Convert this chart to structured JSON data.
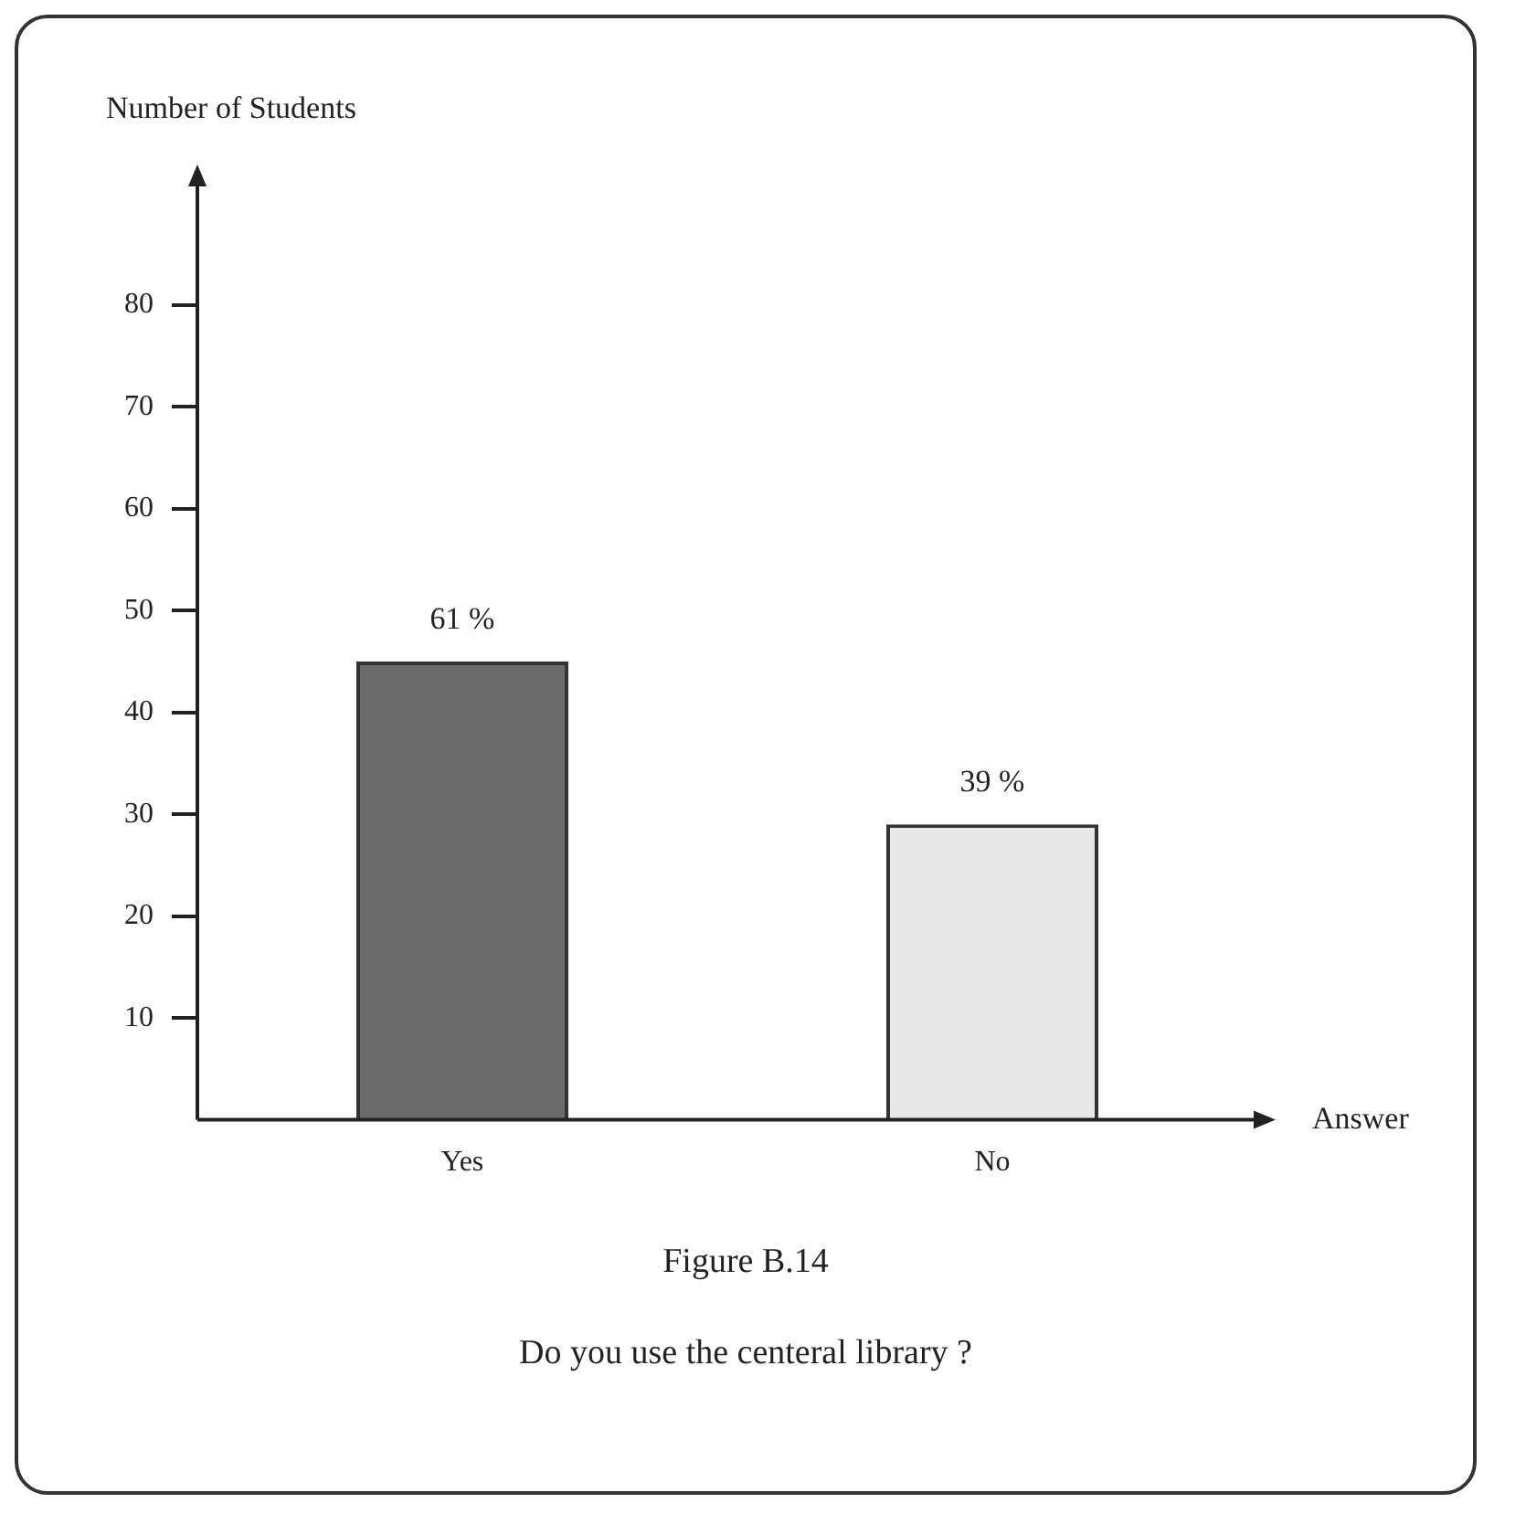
{
  "chart_data": {
    "type": "bar",
    "ylabel": "Number of Students",
    "xlabel": "Answer",
    "categories": [
      "Yes",
      "No"
    ],
    "values": [
      45,
      29
    ],
    "colors": [
      "#6b6b6b",
      "#e8e8e8"
    ],
    "ylim": [
      0,
      92
    ],
    "yticks": [
      10,
      20,
      30,
      40,
      50,
      60,
      70,
      80
    ],
    "grid": false,
    "legend": false,
    "annotations": [
      {
        "text": "61 %",
        "x": "Yes",
        "y": 45
      },
      {
        "text": "39 %",
        "x": "No",
        "y": 29
      },
      "Figure B.14",
      "Do you use the centeral library ?"
    ]
  }
}
